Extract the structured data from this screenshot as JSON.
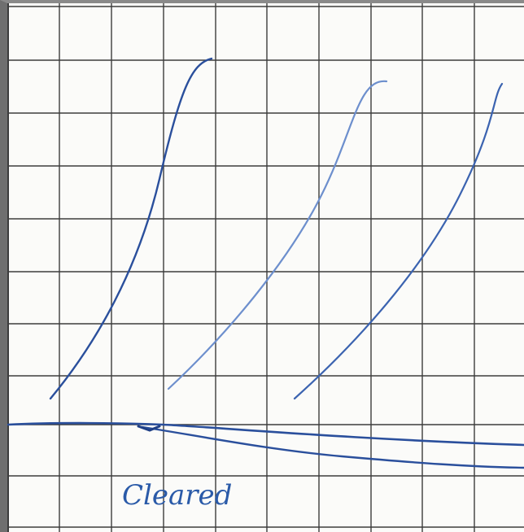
{
  "handwritten_label": "Cleared",
  "colors": {
    "paper": "#fbfbf9",
    "grid": "#3c3c3c",
    "ink_dark": "#2a4f9c",
    "ink_light": "#6d8fcd",
    "ink_mid": "#3b63b0",
    "edge": "#6f6f6f"
  }
}
